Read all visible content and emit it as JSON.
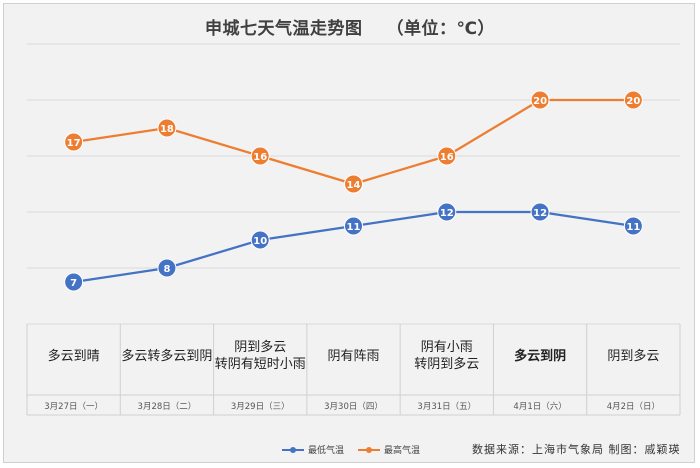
{
  "chart_data": {
    "type": "line",
    "title": "申城七天气温走势图",
    "unit": "（单位：℃）",
    "categories": [
      "3月27日（一）",
      "3月28日（二）",
      "3月29日（三）",
      "3月30日（四）",
      "3月31日（五）",
      "4月1日（六）",
      "4月2日（日）"
    ],
    "weather": [
      [
        "多云到晴"
      ],
      [
        "多云转多云到阴"
      ],
      [
        "阴到多云",
        "转阴有短时小雨"
      ],
      [
        "阴有阵雨"
      ],
      [
        "阴有小雨",
        "转阴到多云"
      ],
      [
        "多云到阴"
      ],
      [
        "阴到多云"
      ]
    ],
    "series": [
      {
        "name": "最低气温",
        "color": "#4472c4",
        "values": [
          7,
          8,
          10,
          11,
          12,
          12,
          11
        ]
      },
      {
        "name": "最高气温",
        "color": "#ed7d31",
        "values": [
          17,
          18,
          16,
          14,
          16,
          20,
          20
        ]
      }
    ],
    "ylim": [
      4,
      24
    ],
    "grid": true,
    "legend": "bottom"
  },
  "footer": {
    "source": "数据来源：上海市气象局    制图：戚颖瑛"
  }
}
